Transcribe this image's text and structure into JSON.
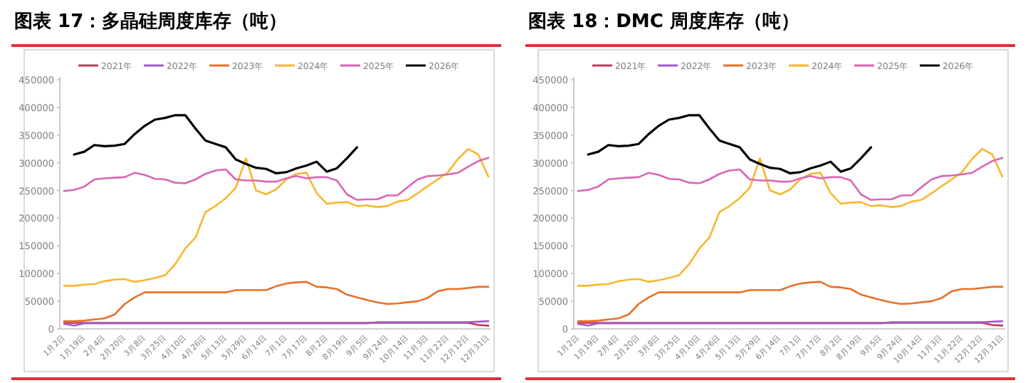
{
  "chart_data": [
    {
      "type": "line",
      "title": "图表 17：多晶硅周度库存（吨）",
      "categories": [
        "1月2日",
        null,
        "1月19日",
        null,
        "2月4日",
        null,
        "2月20日",
        null,
        "3月8日",
        null,
        "3月25日",
        null,
        "4月10日",
        null,
        "4月26日",
        null,
        "5月13日",
        null,
        "5月29日",
        null,
        "6月14日",
        null,
        "7月1日",
        null,
        "7月17日",
        null,
        "8月2日",
        null,
        "8月19日",
        null,
        "9月5日",
        null,
        "9月24日",
        null,
        "10月14日",
        null,
        "11月3日",
        null,
        "11月22日",
        null,
        "12月12日",
        null,
        "12月31日"
      ],
      "ylim": [
        0,
        450000
      ],
      "yticks": [
        0,
        50000,
        100000,
        150000,
        200000,
        250000,
        300000,
        350000,
        400000,
        450000
      ],
      "grid": false,
      "legend": "top",
      "series": [
        {
          "name": "2021年",
          "color": "#c0395a",
          "values": [
            11000,
            11000,
            11000,
            11000,
            11000,
            11000,
            11000,
            11000,
            11000,
            11000,
            11000,
            11000,
            11000,
            11000,
            11000,
            11000,
            11000,
            11000,
            11000,
            11000,
            11000,
            11000,
            11000,
            11000,
            11000,
            11000,
            11000,
            11000,
            11000,
            11000,
            11000,
            11000,
            11000,
            11000,
            11000,
            11000,
            11000,
            11000,
            11000,
            11000,
            11000,
            7000,
            6000
          ]
        },
        {
          "name": "2022年",
          "color": "#a05cc8",
          "values": [
            9000,
            6000,
            10000,
            10000,
            10000,
            10000,
            10000,
            10000,
            10000,
            10000,
            10000,
            10000,
            10000,
            10000,
            10000,
            10000,
            10000,
            10000,
            10000,
            10000,
            10000,
            10000,
            10000,
            10000,
            10000,
            10000,
            10000,
            10000,
            10000,
            10000,
            10000,
            12000,
            12000,
            12000,
            12000,
            12000,
            12000,
            12000,
            12000,
            12000,
            12000,
            13000,
            14000
          ]
        },
        {
          "name": "2023年",
          "color": "#e8702a",
          "values": [
            14000,
            14000,
            15000,
            17000,
            19000,
            26000,
            45000,
            57000,
            66000,
            66000,
            66000,
            66000,
            66000,
            66000,
            66000,
            66000,
            66000,
            70000,
            70000,
            70000,
            70000,
            77000,
            82000,
            84000,
            85000,
            76000,
            75000,
            72000,
            62000,
            57000,
            52000,
            48000,
            45000,
            46000,
            48000,
            50000,
            56000,
            68000,
            72000,
            72000,
            74000,
            76000,
            76000
          ]
        },
        {
          "name": "2024年",
          "color": "#f7b731",
          "values": [
            78000,
            78000,
            80000,
            81000,
            86000,
            89000,
            90000,
            85000,
            88000,
            92000,
            97000,
            117000,
            145000,
            165000,
            211000,
            222000,
            236000,
            255000,
            308000,
            250000,
            243000,
            252000,
            270000,
            280000,
            282000,
            245000,
            226000,
            228000,
            229000,
            222000,
            223000,
            220000,
            222000,
            230000,
            233000,
            245000,
            258000,
            270000,
            283000,
            307000,
            325000,
            315000,
            275000
          ]
        },
        {
          "name": "2025年",
          "color": "#d966b3",
          "values": [
            249000,
            251000,
            257000,
            270000,
            272000,
            273000,
            274000,
            282000,
            278000,
            271000,
            270000,
            264000,
            263000,
            270000,
            280000,
            286000,
            288000,
            270000,
            268000,
            268000,
            266000,
            266000,
            272000,
            276000,
            272000,
            274000,
            274000,
            268000,
            243000,
            233000,
            234000,
            234000,
            241000,
            241000,
            256000,
            270000,
            276000,
            277000,
            279000,
            282000,
            293000,
            303000,
            309000
          ]
        },
        {
          "name": "2026年",
          "color": "#000000",
          "values": [
            null,
            315000,
            320000,
            332000,
            330000,
            331000,
            334000,
            352000,
            367000,
            378000,
            381000,
            386000,
            386000,
            362000,
            340000,
            334000,
            328000,
            306000,
            298000,
            291000,
            289000,
            281000,
            283000,
            290000,
            295000,
            302000,
            284000,
            290000,
            308000,
            328000,
            null,
            null,
            null,
            null,
            null,
            null,
            null,
            null,
            null,
            null,
            null,
            null,
            null
          ]
        }
      ]
    },
    {
      "type": "line",
      "title": "图表 18：DMC 周度库存（吨）",
      "categories": [
        "1月2日",
        null,
        "1月19日",
        null,
        "2月4日",
        null,
        "2月20日",
        null,
        "3月8日",
        null,
        "3月25日",
        null,
        "4月10日",
        null,
        "4月26日",
        null,
        "5月13日",
        null,
        "5月29日",
        null,
        "6月14日",
        null,
        "7月1日",
        null,
        "7月17日",
        null,
        "8月2日",
        null,
        "8月19日",
        null,
        "9月5日",
        null,
        "9月24日",
        null,
        "10月14日",
        null,
        "11月3日",
        null,
        "11月22日",
        null,
        "12月12日",
        null,
        "12月31日"
      ],
      "ylim": [
        0,
        450000
      ],
      "yticks": [
        0,
        50000,
        100000,
        150000,
        200000,
        250000,
        300000,
        350000,
        400000,
        450000
      ],
      "grid": false,
      "legend": "top",
      "series": [
        {
          "name": "2021年",
          "color": "#c0395a",
          "values": [
            11000,
            11000,
            11000,
            11000,
            11000,
            11000,
            11000,
            11000,
            11000,
            11000,
            11000,
            11000,
            11000,
            11000,
            11000,
            11000,
            11000,
            11000,
            11000,
            11000,
            11000,
            11000,
            11000,
            11000,
            11000,
            11000,
            11000,
            11000,
            11000,
            11000,
            11000,
            11000,
            11000,
            11000,
            11000,
            11000,
            11000,
            11000,
            11000,
            11000,
            11000,
            7000,
            6000
          ]
        },
        {
          "name": "2022年",
          "color": "#a05cc8",
          "values": [
            9000,
            6000,
            10000,
            10000,
            10000,
            10000,
            10000,
            10000,
            10000,
            10000,
            10000,
            10000,
            10000,
            10000,
            10000,
            10000,
            10000,
            10000,
            10000,
            10000,
            10000,
            10000,
            10000,
            10000,
            10000,
            10000,
            10000,
            10000,
            10000,
            10000,
            10000,
            12000,
            12000,
            12000,
            12000,
            12000,
            12000,
            12000,
            12000,
            12000,
            12000,
            13000,
            14000
          ]
        },
        {
          "name": "2023年",
          "color": "#e8702a",
          "values": [
            14000,
            14000,
            15000,
            17000,
            19000,
            26000,
            45000,
            57000,
            66000,
            66000,
            66000,
            66000,
            66000,
            66000,
            66000,
            66000,
            66000,
            70000,
            70000,
            70000,
            70000,
            77000,
            82000,
            84000,
            85000,
            76000,
            75000,
            72000,
            62000,
            57000,
            52000,
            48000,
            45000,
            46000,
            48000,
            50000,
            56000,
            68000,
            72000,
            72000,
            74000,
            76000,
            76000
          ]
        },
        {
          "name": "2024年",
          "color": "#f7b731",
          "values": [
            78000,
            78000,
            80000,
            81000,
            86000,
            89000,
            90000,
            85000,
            88000,
            92000,
            97000,
            117000,
            145000,
            165000,
            211000,
            222000,
            236000,
            255000,
            308000,
            250000,
            243000,
            252000,
            270000,
            280000,
            282000,
            245000,
            226000,
            228000,
            229000,
            222000,
            223000,
            220000,
            222000,
            230000,
            233000,
            245000,
            258000,
            270000,
            283000,
            307000,
            325000,
            315000,
            275000
          ]
        },
        {
          "name": "2025年",
          "color": "#d966b3",
          "values": [
            249000,
            251000,
            257000,
            270000,
            272000,
            273000,
            274000,
            282000,
            278000,
            271000,
            270000,
            264000,
            263000,
            270000,
            280000,
            286000,
            288000,
            270000,
            268000,
            268000,
            266000,
            266000,
            272000,
            276000,
            272000,
            274000,
            274000,
            268000,
            243000,
            233000,
            234000,
            234000,
            241000,
            241000,
            256000,
            270000,
            276000,
            277000,
            279000,
            282000,
            293000,
            303000,
            309000
          ]
        },
        {
          "name": "2026年",
          "color": "#000000",
          "values": [
            null,
            315000,
            320000,
            332000,
            330000,
            331000,
            334000,
            352000,
            367000,
            378000,
            381000,
            386000,
            386000,
            362000,
            340000,
            334000,
            328000,
            306000,
            298000,
            291000,
            289000,
            281000,
            283000,
            290000,
            295000,
            302000,
            284000,
            290000,
            308000,
            328000,
            null,
            null,
            null,
            null,
            null,
            null,
            null,
            null,
            null,
            null,
            null,
            null,
            null
          ]
        }
      ]
    }
  ]
}
